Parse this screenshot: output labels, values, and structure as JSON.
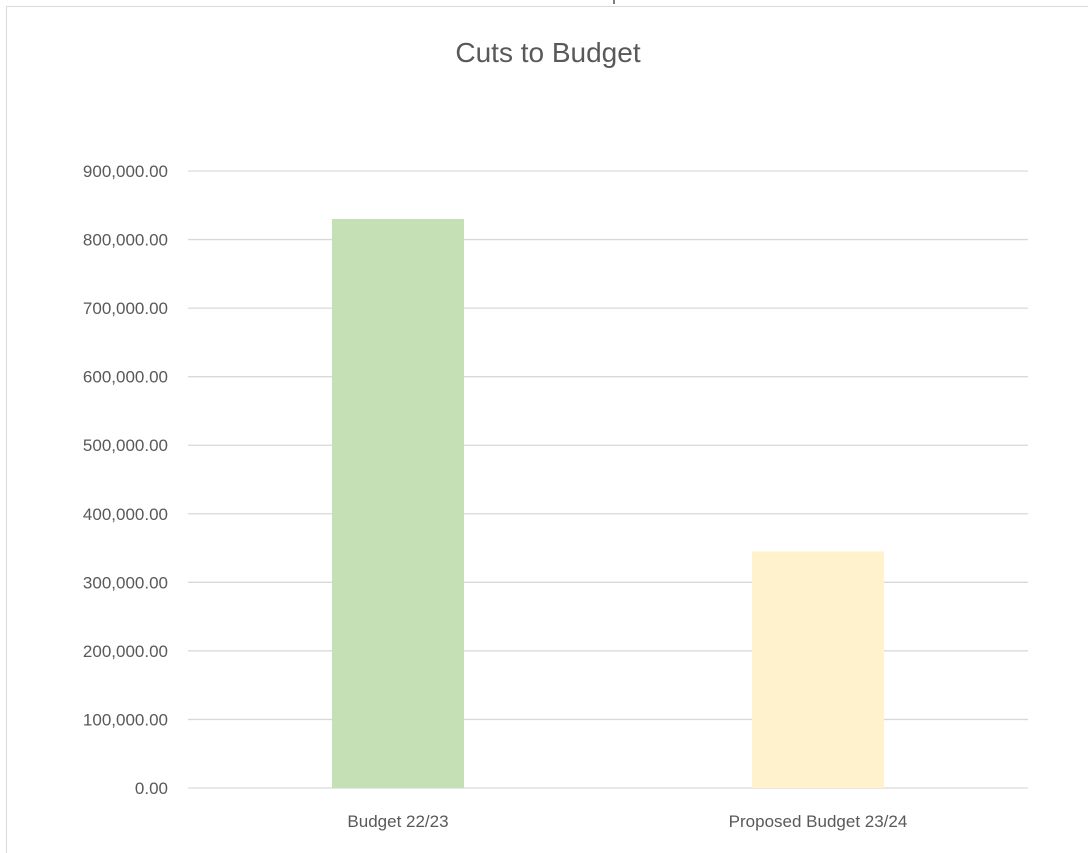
{
  "chart_data": {
    "type": "bar",
    "title": "Cuts to Budget",
    "xlabel": "",
    "ylabel": "",
    "categories": [
      "Budget 22/23",
      "Proposed Budget 23/24"
    ],
    "values": [
      830000,
      345000
    ],
    "ylim": [
      0,
      900000
    ],
    "yticks": [
      "0.00",
      "100,000.00",
      "200,000.00",
      "300,000.00",
      "400,000.00",
      "500,000.00",
      "600,000.00",
      "700,000.00",
      "800,000.00",
      "900,000.00"
    ],
    "grid": true,
    "legend": "none",
    "bar_colors": [
      "#c5e0b4",
      "#fff2cc"
    ],
    "gridline_color": "#d9d9d9",
    "text_color": "#595959"
  }
}
